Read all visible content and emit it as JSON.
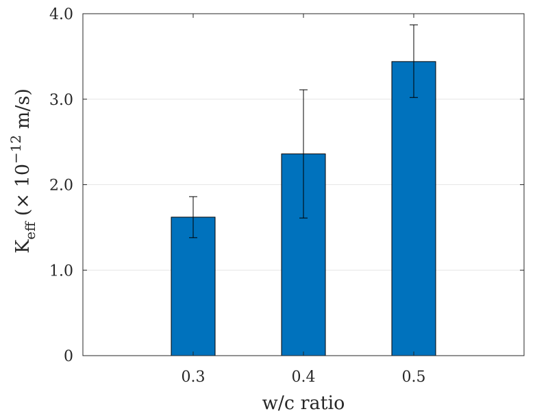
{
  "chart_data": {
    "type": "bar",
    "categories": [
      "0.3",
      "0.4",
      "0.5"
    ],
    "values": [
      1.62,
      2.36,
      3.44
    ],
    "error_low": [
      1.38,
      1.61,
      3.02
    ],
    "error_high": [
      1.86,
      3.11,
      3.87
    ],
    "xlabel": "w/c ratio",
    "ylabel": {
      "base": "K",
      "subscript": "eff",
      "prefix": " (× 10",
      "exponent": "−12",
      "suffix": " m/s)"
    },
    "ylim": [
      0,
      4.0
    ],
    "yticks": [
      "0",
      "1.0",
      "2.0",
      "3.0",
      "4.0"
    ],
    "ytick_values": [
      0,
      1.0,
      2.0,
      3.0,
      4.0
    ],
    "xlim": [
      0,
      4
    ],
    "grid": "horizontal",
    "bar_color": "#0072BD",
    "edge_color": "#000000",
    "axis_color": "#262626",
    "grid_color": "#e6e6e6"
  }
}
